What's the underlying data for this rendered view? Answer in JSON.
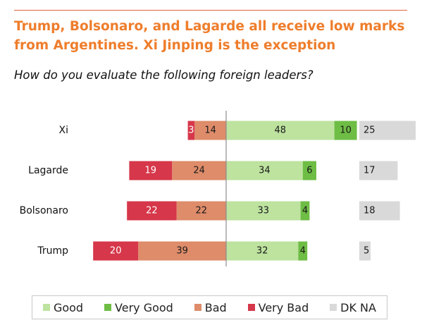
{
  "header": {
    "title": "Trump, Bolsonaro, and Lagarde all receive low marks from Argentines. Xi Jinping is the exception",
    "subtitle": "How do you evaluate the following foreign leaders?"
  },
  "colors": {
    "good": "#bde39f",
    "very_good": "#6ebd45",
    "bad": "#de8c6a",
    "very_bad": "#d6374a",
    "dk_na": "#d9d9d9",
    "accent": "#ee7d2b",
    "axis": "#8c8c8c"
  },
  "chart_data": {
    "type": "bar",
    "orientation": "horizontal-diverging",
    "categories": [
      "Xi",
      "Lagarde",
      "Bolsonaro",
      "Trump"
    ],
    "series": [
      {
        "name": "Good",
        "key": "good",
        "values": [
          48,
          34,
          33,
          32
        ]
      },
      {
        "name": "Very Good",
        "key": "very_good",
        "values": [
          10,
          6,
          4,
          4
        ]
      },
      {
        "name": "Bad",
        "key": "bad",
        "values": [
          14,
          24,
          22,
          39
        ]
      },
      {
        "name": "Very Bad",
        "key": "very_bad",
        "values": [
          3,
          19,
          22,
          20
        ]
      },
      {
        "name": "DK NA",
        "key": "dk_na",
        "values": [
          25,
          17,
          18,
          5
        ]
      }
    ],
    "legend_position": "bottom",
    "grid": false,
    "title": "",
    "xlabel": "",
    "ylabel": ""
  },
  "legend": {
    "items": [
      {
        "label": "Good",
        "key": "good"
      },
      {
        "label": "Very Good",
        "key": "very_good"
      },
      {
        "label": "Bad",
        "key": "bad"
      },
      {
        "label": "Very Bad",
        "key": "very_bad"
      },
      {
        "label": "DK NA",
        "key": "dk_na"
      }
    ]
  }
}
